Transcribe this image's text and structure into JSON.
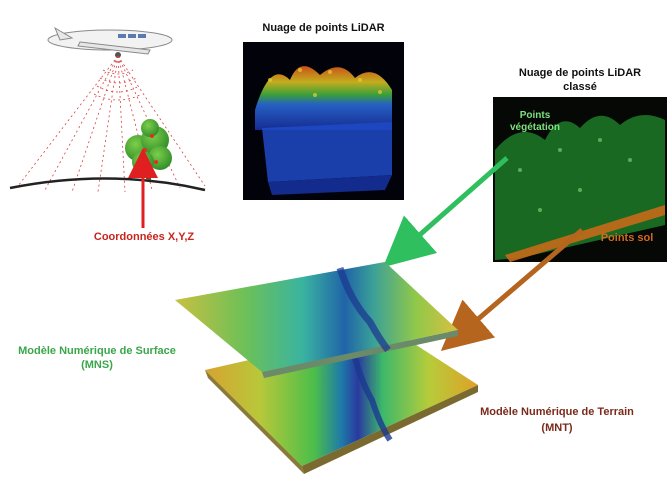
{
  "labels": {
    "lidar_cloud_title": "Nuage de points LiDAR",
    "classified_cloud_title_line1": "Nuage de points LiDAR",
    "classified_cloud_title_line2": "classé",
    "vegetation_points_line1": "Points",
    "vegetation_points_line2": "végétation",
    "ground_points": "Points sol",
    "coordinates": "Coordonnées X,Y,Z",
    "mns_line1": "Modèle Numérique de Surface",
    "mns_line2": "(MNS)",
    "mnt_line1": "Modèle Numérique de Terrain",
    "mnt_line2": "(MNT)"
  },
  "colors": {
    "coordinates_label": "#c8241e",
    "mns_label": "#3aa64a",
    "mnt_label": "#7a2a1a",
    "vegetation_label": "#7ee07e",
    "ground_label": "#d2691e",
    "green_arrow": "#2fbf5f",
    "brown_arrow": "#b5651d",
    "red_arrow": "#e02020"
  }
}
